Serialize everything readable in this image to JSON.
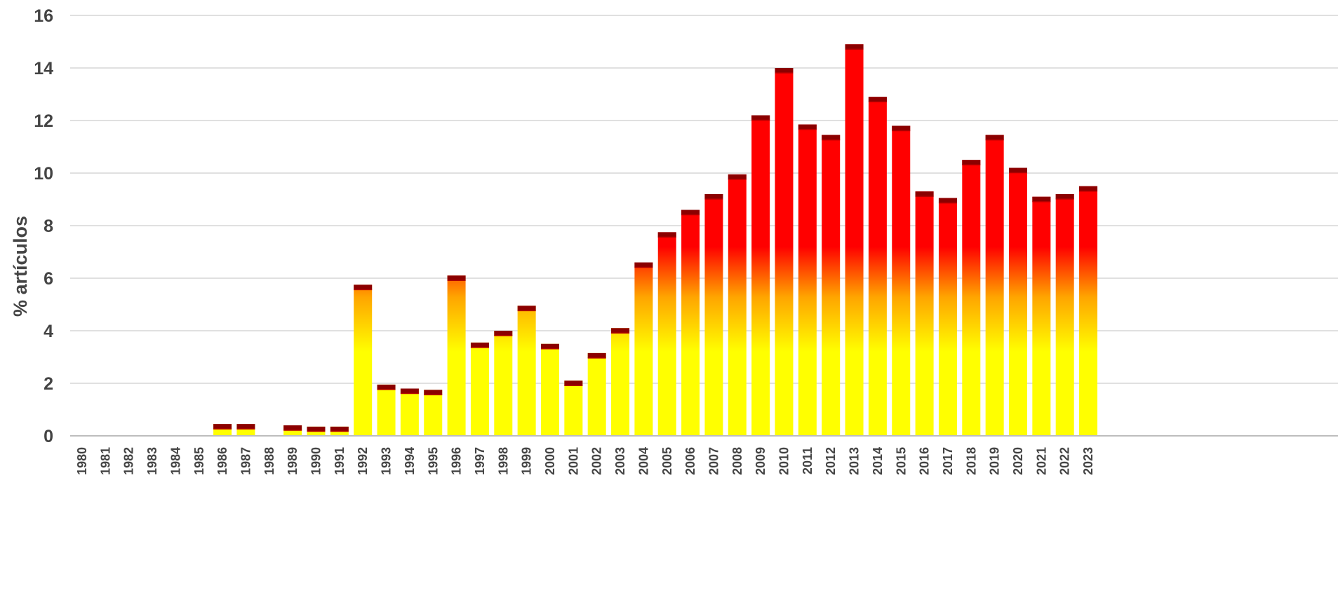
{
  "chart_data": {
    "type": "bar",
    "title": "",
    "xlabel": "",
    "ylabel": "% artículos",
    "ylim": [
      0,
      16
    ],
    "yticks": [
      0,
      2,
      4,
      6,
      8,
      10,
      12,
      14,
      16
    ],
    "grid": true,
    "legend": "none",
    "colors": {
      "bottom": "#ffff00",
      "middle": "#ffa500",
      "top": "#ff0000",
      "cap": "#8b0000",
      "gap": "#ffffff"
    },
    "categories": [
      "1980",
      "1981",
      "1982",
      "1983",
      "1984",
      "1985",
      "1986",
      "1987",
      "1988",
      "1989",
      "1990",
      "1991",
      "1992",
      "1993",
      "1994",
      "1995",
      "1996",
      "1997",
      "1998",
      "1999",
      "2000",
      "2001",
      "2002",
      "2003",
      "2004",
      "2005",
      "2006",
      "2007",
      "2008",
      "2009",
      "2010",
      "2011",
      "2012",
      "2013",
      "2014",
      "2015",
      "2016",
      "2017",
      "2018",
      "2019",
      "2020",
      "2021",
      "2022",
      "2023"
    ],
    "values": [
      0,
      0,
      0,
      0,
      0,
      0,
      0.45,
      0.45,
      0,
      0.4,
      0.35,
      0.35,
      5.75,
      1.95,
      1.8,
      1.75,
      6.1,
      3.55,
      4.0,
      4.95,
      3.5,
      2.1,
      3.15,
      4.1,
      6.6,
      7.75,
      8.6,
      9.2,
      9.95,
      12.2,
      14.0,
      11.85,
      11.45,
      14.9,
      12.9,
      11.8,
      9.3,
      9.05,
      10.5,
      11.45,
      10.2,
      9.1,
      9.2,
      9.5
    ]
  }
}
